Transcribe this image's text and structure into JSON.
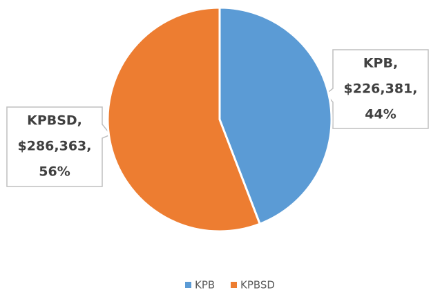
{
  "chart_data": {
    "type": "pie",
    "categories": [
      "KPB",
      "KPBSD"
    ],
    "values": [
      226381,
      286363
    ],
    "value_labels": [
      "$226,381",
      "$286,363"
    ],
    "percents": [
      44,
      56
    ],
    "percent_labels": [
      "44%",
      "56%"
    ],
    "data_labels": [
      [
        "KPB,",
        "$226,381,",
        "44%"
      ],
      [
        "KPBSD,",
        "$286,363,",
        "56%"
      ]
    ],
    "colors": [
      "#5b9bd5",
      "#ed7d31"
    ],
    "legend": "bottom"
  }
}
